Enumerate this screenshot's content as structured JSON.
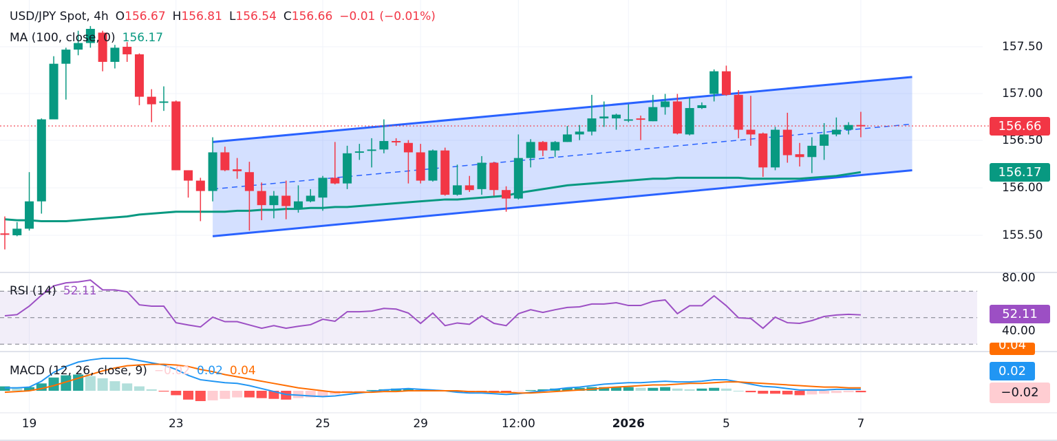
{
  "header": {
    "symbol": "USD/JPY Spot, 4h",
    "o_label": "O",
    "o_value": "156.67",
    "h_label": "H",
    "h_value": "156.81",
    "l_label": "L",
    "l_value": "156.54",
    "c_label": "C",
    "c_value": "156.66",
    "change": "−0.01",
    "change_pct": "(−0.01%)"
  },
  "ma_legend": {
    "label": "MA (100, close, 0)",
    "value": "156.17"
  },
  "rsi_legend": {
    "label": "RSI (14)",
    "value": "52.11"
  },
  "macd_legend": {
    "label": "MACD (12, 26, close, 9)",
    "hist": "−0.02",
    "macd": "0.02",
    "signal": "0.04"
  },
  "price_axis": [
    "157.50",
    "157.00",
    "156.50",
    "156.00",
    "155.50"
  ],
  "rsi_axis": [
    "80.00",
    "40.00"
  ],
  "tags": {
    "last_price": "156.66",
    "ma": "156.17",
    "rsi": "52.11",
    "macd_signal": "0.04",
    "macd": "0.02",
    "macd_hist": "−0.02"
  },
  "colors": {
    "up": "#089981",
    "down": "#F23645",
    "channel": "#2962FF",
    "ma": "#089981",
    "rsi": "#9C4FC4",
    "macd": "#2196F3",
    "signal": "#FF6D00",
    "hist_up_strong": "#26A69A",
    "hist_up_weak": "#B2DFDB",
    "hist_down_strong": "#FF5252",
    "hist_down_weak": "#FFCDD2"
  },
  "chart_data": {
    "type": "candlestick",
    "title": "USD/JPY Spot, 4h",
    "ylim": [
      155.3,
      157.75
    ],
    "x_ticks": [
      {
        "bar": 2,
        "label": "19"
      },
      {
        "bar": 14,
        "label": "23"
      },
      {
        "bar": 26,
        "label": "25"
      },
      {
        "bar": 34,
        "label": "29"
      },
      {
        "bar": 42,
        "label": "12:00"
      },
      {
        "bar": 51,
        "label": "2026",
        "bold": true
      },
      {
        "bar": 59,
        "label": "5"
      },
      {
        "bar": 70,
        "label": "7"
      }
    ],
    "ohlc": [
      [
        155.52,
        155.7,
        155.35,
        155.51
      ],
      [
        155.5,
        155.64,
        155.49,
        155.57
      ],
      [
        155.57,
        156.17,
        155.55,
        155.86
      ],
      [
        155.86,
        156.74,
        155.73,
        156.73
      ],
      [
        156.73,
        157.4,
        156.73,
        157.32
      ],
      [
        157.32,
        157.49,
        156.94,
        157.47
      ],
      [
        157.47,
        157.67,
        157.41,
        157.54
      ],
      [
        157.54,
        157.72,
        157.49,
        157.69
      ],
      [
        157.65,
        157.67,
        157.24,
        157.34
      ],
      [
        157.34,
        157.52,
        157.27,
        157.49
      ],
      [
        157.5,
        157.55,
        157.34,
        157.42
      ],
      [
        157.42,
        157.43,
        156.88,
        156.97
      ],
      [
        156.97,
        157.05,
        156.7,
        156.89
      ],
      [
        156.91,
        157.08,
        156.82,
        156.92
      ],
      [
        156.92,
        156.93,
        156.19,
        156.19
      ],
      [
        156.19,
        156.19,
        155.9,
        156.08
      ],
      [
        156.08,
        156.11,
        155.65,
        155.97
      ],
      [
        155.97,
        156.54,
        155.86,
        156.38
      ],
      [
        156.38,
        156.44,
        156.18,
        156.19
      ],
      [
        156.2,
        156.32,
        156.1,
        156.18
      ],
      [
        156.17,
        156.28,
        155.55,
        155.97
      ],
      [
        155.97,
        156.06,
        155.66,
        155.82
      ],
      [
        155.82,
        155.97,
        155.68,
        155.92
      ],
      [
        155.92,
        156.08,
        155.67,
        155.81
      ],
      [
        155.79,
        156.03,
        155.74,
        155.86
      ],
      [
        155.86,
        155.99,
        155.85,
        155.92
      ],
      [
        155.9,
        156.13,
        155.76,
        156.11
      ],
      [
        156.11,
        156.49,
        156.04,
        156.05
      ],
      [
        156.05,
        156.45,
        155.99,
        156.37
      ],
      [
        156.38,
        156.47,
        156.3,
        156.39
      ],
      [
        156.4,
        156.53,
        156.22,
        156.41
      ],
      [
        156.41,
        156.73,
        156.37,
        156.5
      ],
      [
        156.5,
        156.53,
        156.45,
        156.49
      ],
      [
        156.48,
        156.51,
        156.05,
        156.38
      ],
      [
        156.38,
        156.47,
        156.05,
        156.08
      ],
      [
        156.08,
        156.41,
        156.07,
        156.4
      ],
      [
        156.4,
        156.43,
        155.92,
        155.93
      ],
      [
        155.93,
        156.25,
        155.92,
        156.03
      ],
      [
        156.03,
        156.13,
        155.96,
        155.98
      ],
      [
        155.99,
        156.34,
        155.93,
        156.27
      ],
      [
        156.27,
        156.28,
        155.92,
        155.98
      ],
      [
        155.98,
        156.02,
        155.75,
        155.89
      ],
      [
        155.89,
        156.57,
        155.88,
        156.32
      ],
      [
        156.32,
        156.52,
        156.22,
        156.49
      ],
      [
        156.49,
        156.5,
        156.34,
        156.4
      ],
      [
        156.4,
        156.5,
        156.33,
        156.49
      ],
      [
        156.49,
        156.66,
        156.49,
        156.57
      ],
      [
        156.57,
        156.67,
        156.51,
        156.6
      ],
      [
        156.6,
        156.99,
        156.56,
        156.74
      ],
      [
        156.74,
        156.92,
        156.65,
        156.76
      ],
      [
        156.74,
        156.79,
        156.62,
        156.78
      ],
      [
        156.72,
        156.89,
        156.7,
        156.73
      ],
      [
        156.74,
        156.77,
        156.51,
        156.73
      ],
      [
        156.71,
        156.99,
        156.71,
        156.86
      ],
      [
        156.86,
        157.0,
        156.78,
        156.92
      ],
      [
        156.92,
        157.0,
        156.57,
        156.58
      ],
      [
        156.57,
        156.96,
        156.56,
        156.85
      ],
      [
        156.85,
        156.91,
        156.84,
        156.88
      ],
      [
        157.0,
        157.26,
        156.92,
        157.24
      ],
      [
        157.24,
        157.3,
        156.98,
        156.99
      ],
      [
        156.99,
        157.04,
        156.53,
        156.62
      ],
      [
        156.62,
        156.98,
        156.45,
        156.57
      ],
      [
        156.58,
        156.59,
        156.12,
        156.22
      ],
      [
        156.22,
        156.65,
        156.19,
        156.62
      ],
      [
        156.62,
        156.8,
        156.27,
        156.35
      ],
      [
        156.36,
        156.48,
        156.23,
        156.33
      ],
      [
        156.33,
        156.54,
        156.16,
        156.45
      ],
      [
        156.45,
        156.69,
        156.3,
        156.57
      ],
      [
        156.57,
        156.75,
        156.55,
        156.62
      ],
      [
        156.62,
        156.7,
        156.57,
        156.67
      ],
      [
        156.67,
        156.81,
        156.54,
        156.66
      ]
    ],
    "ma100": [
      155.67,
      155.66,
      155.66,
      155.65,
      155.65,
      155.65,
      155.66,
      155.67,
      155.68,
      155.69,
      155.7,
      155.72,
      155.73,
      155.74,
      155.75,
      155.75,
      155.75,
      155.75,
      155.75,
      155.76,
      155.76,
      155.77,
      155.77,
      155.78,
      155.78,
      155.79,
      155.79,
      155.8,
      155.8,
      155.81,
      155.82,
      155.83,
      155.84,
      155.85,
      155.86,
      155.87,
      155.88,
      155.88,
      155.89,
      155.9,
      155.91,
      155.92,
      155.95,
      155.97,
      155.99,
      156.01,
      156.03,
      156.04,
      156.05,
      156.06,
      156.07,
      156.08,
      156.09,
      156.1,
      156.1,
      156.11,
      156.11,
      156.11,
      156.11,
      156.11,
      156.11,
      156.1,
      156.1,
      156.1,
      156.1,
      156.1,
      156.11,
      156.12,
      156.13,
      156.15,
      156.17
    ],
    "channel": {
      "start_bar": 17,
      "end_bar": 74.2,
      "upper": [
        156.49,
        157.18
      ],
      "middle": [
        155.99,
        156.68
      ],
      "lower": [
        155.49,
        156.19
      ]
    },
    "last_price": 156.66,
    "rsi": {
      "ylim": [
        25,
        88
      ],
      "levels": [
        70,
        50,
        30
      ],
      "values": [
        51.4,
        52.3,
        58.7,
        67,
        74,
        76.3,
        77,
        78.4,
        71,
        71,
        69.6,
        59.7,
        58.7,
        58.7,
        46.2,
        44.5,
        43,
        50.4,
        47,
        47,
        44.5,
        42,
        44,
        42,
        43.5,
        44.7,
        48.8,
        47.3,
        54.5,
        54.5,
        55,
        57,
        56.5,
        53.5,
        45.7,
        53.5,
        44,
        46,
        45,
        51.4,
        45.7,
        44,
        53,
        56,
        54,
        56,
        57.7,
        58.2,
        60.3,
        60.3,
        61.3,
        59.2,
        59.2,
        62.3,
        63.4,
        53,
        59,
        59,
        66.5,
        59,
        49.9,
        49.4,
        42,
        50.4,
        46.2,
        45.7,
        47.8,
        50.9,
        52,
        52.5,
        52.11
      ]
    },
    "macd": {
      "macd": [
        0.04,
        0.04,
        0.05,
        0.13,
        0.25,
        0.33,
        0.39,
        0.42,
        0.44,
        0.44,
        0.44,
        0.41,
        0.38,
        0.35,
        0.29,
        0.21,
        0.15,
        0.13,
        0.11,
        0.1,
        0.07,
        0.03,
        -0.01,
        -0.05,
        -0.06,
        -0.07,
        -0.08,
        -0.07,
        -0.05,
        -0.03,
        -0.01,
        0.01,
        0.02,
        0.03,
        0.02,
        0.01,
        0.0,
        -0.02,
        -0.03,
        -0.03,
        -0.04,
        -0.05,
        -0.04,
        -0.02,
        0.0,
        0.02,
        0.04,
        0.05,
        0.07,
        0.09,
        0.1,
        0.11,
        0.11,
        0.12,
        0.13,
        0.12,
        0.12,
        0.13,
        0.15,
        0.15,
        0.12,
        0.09,
        0.06,
        0.05,
        0.03,
        0.01,
        0.01,
        0.01,
        0.02,
        0.02,
        0.02
      ],
      "signal": [
        -0.02,
        -0.01,
        0.0,
        0.03,
        0.07,
        0.12,
        0.17,
        0.22,
        0.27,
        0.31,
        0.34,
        0.35,
        0.36,
        0.36,
        0.35,
        0.33,
        0.29,
        0.26,
        0.22,
        0.19,
        0.16,
        0.13,
        0.1,
        0.07,
        0.04,
        0.02,
        0.0,
        -0.02,
        -0.02,
        -0.02,
        -0.02,
        -0.01,
        -0.01,
        0.0,
        0.0,
        0.0,
        0.0,
        0.0,
        -0.01,
        -0.01,
        -0.02,
        -0.02,
        -0.03,
        -0.03,
        -0.02,
        -0.01,
        0.0,
        0.01,
        0.02,
        0.04,
        0.05,
        0.06,
        0.07,
        0.08,
        0.08,
        0.09,
        0.1,
        0.1,
        0.11,
        0.12,
        0.12,
        0.11,
        0.1,
        0.09,
        0.08,
        0.07,
        0.06,
        0.05,
        0.05,
        0.04,
        0.04
      ]
    }
  }
}
